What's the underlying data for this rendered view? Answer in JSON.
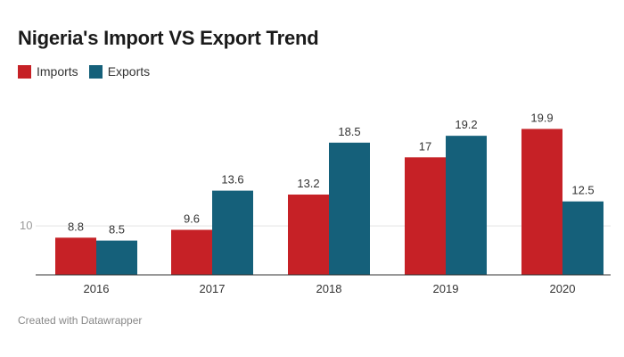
{
  "chart_data": {
    "type": "bar",
    "title": "Nigeria's Import VS Export Trend",
    "categories": [
      "2016",
      "2017",
      "2018",
      "2019",
      "2020"
    ],
    "series": [
      {
        "name": "Imports",
        "color": "#c62126",
        "values": [
          8.8,
          9.6,
          13.2,
          17,
          19.9
        ]
      },
      {
        "name": "Exports",
        "color": "#15607a",
        "values": [
          8.5,
          13.6,
          18.5,
          19.2,
          12.5
        ]
      }
    ],
    "y_ticks": [
      "10"
    ],
    "ylim": [
      5,
      21.4
    ],
    "grid": true,
    "legend_position": "top-left"
  },
  "footer": "Created with Datawrapper"
}
